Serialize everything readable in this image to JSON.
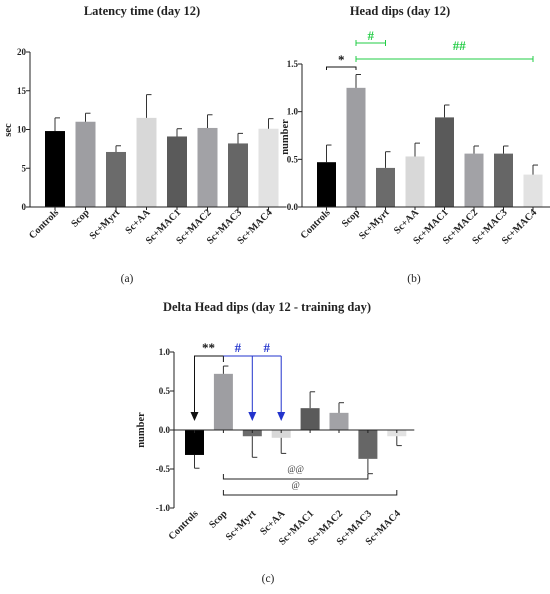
{
  "chart_data": [
    {
      "type": "bar",
      "title": "Latency time (day 12)",
      "ylabel": "sec",
      "ylim": [
        0,
        20
      ],
      "yticks": [
        "0",
        "5",
        "10",
        "15",
        "20"
      ],
      "categories": [
        "Controls",
        "Scop",
        "Sc+Myrt",
        "Sc+AA",
        "Sc+MAC1",
        "Sc+MAC2",
        "Sc+MAC3",
        "Sc+MAC4"
      ],
      "values": [
        9.8,
        11.0,
        7.1,
        11.5,
        9.1,
        10.2,
        8.2,
        10.1
      ],
      "errors": [
        1.7,
        1.1,
        0.8,
        3.0,
        1.0,
        1.7,
        1.3,
        1.3
      ],
      "colors": [
        "#000000",
        "#9e9ea2",
        "#6b6b6b",
        "#d8d8d8",
        "#5a5a5a",
        "#a2a2a6",
        "#666666",
        "#e2e2e2"
      ],
      "panel_label": "(a)"
    },
    {
      "type": "bar",
      "title": "Head dips (day 12)",
      "ylabel": "number",
      "ylim": [
        0,
        1.5
      ],
      "yticks": [
        "0.0",
        "0.5",
        "1.0",
        "1.5"
      ],
      "categories": [
        "Controls",
        "Scop",
        "Sc+Myrt",
        "Sc+AA",
        "Sc+MAC1",
        "Sc+MAC2",
        "Sc+MAC3",
        "Sc+MAC4"
      ],
      "values": [
        0.47,
        1.25,
        0.41,
        0.53,
        0.94,
        0.56,
        0.56,
        0.34
      ],
      "errors": [
        0.18,
        0.14,
        0.17,
        0.14,
        0.13,
        0.08,
        0.08,
        0.1
      ],
      "colors": [
        "#000000",
        "#9e9ea2",
        "#6b6b6b",
        "#d8d8d8",
        "#5a5a5a",
        "#a2a2a6",
        "#666666",
        "#e2e2e2"
      ],
      "annotations": [
        "*",
        "#",
        "##"
      ],
      "panel_label": "(b)"
    },
    {
      "type": "bar",
      "title": "Delta Head dips (day 12 - training day)",
      "ylabel": "number",
      "ylim": [
        -1.0,
        1.0
      ],
      "yticks": [
        "-1.0",
        "-0.5",
        "0.0",
        "0.5",
        "1.0"
      ],
      "categories": [
        "Controls",
        "Scop",
        "Sc+Myrt",
        "Sc+AA",
        "Sc+MAC1",
        "Sc+MAC2",
        "Sc+MAC3",
        "Sc+MAC4"
      ],
      "values": [
        -0.32,
        0.72,
        -0.08,
        -0.1,
        0.28,
        0.22,
        -0.37,
        -0.08
      ],
      "errors": [
        0.17,
        0.1,
        0.27,
        0.2,
        0.21,
        0.13,
        0.19,
        0.12
      ],
      "colors": [
        "#000000",
        "#9e9ea2",
        "#6b6b6b",
        "#d8d8d8",
        "#5a5a5a",
        "#a2a2a6",
        "#666666",
        "#e2e2e2"
      ],
      "annotations": [
        "**",
        "#",
        "#",
        "@@",
        "@"
      ],
      "panel_label": "(c)"
    }
  ]
}
